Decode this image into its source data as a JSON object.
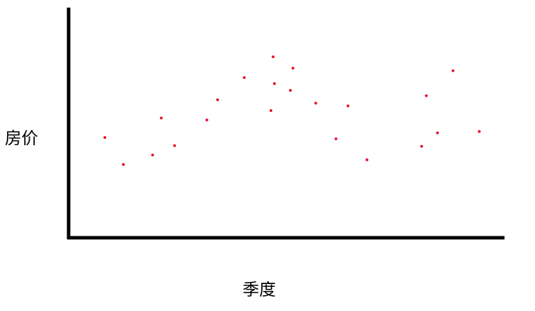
{
  "chart_data": {
    "type": "scatter",
    "title": "",
    "xlabel": "季度",
    "ylabel": "房价",
    "xlim": [
      0,
      100
    ],
    "ylim": [
      0,
      100
    ],
    "grid": false,
    "legend": "none",
    "series": [
      {
        "color": "#e8102f",
        "points": [
          {
            "x": 8.1,
            "y": 43.7
          },
          {
            "x": 12.4,
            "y": 31.7
          },
          {
            "x": 19.2,
            "y": 35.9
          },
          {
            "x": 21.2,
            "y": 52.4
          },
          {
            "x": 24.3,
            "y": 40.1
          },
          {
            "x": 31.8,
            "y": 51.5
          },
          {
            "x": 34.3,
            "y": 60.5
          },
          {
            "x": 40.5,
            "y": 70.4
          },
          {
            "x": 46.7,
            "y": 55.7
          },
          {
            "x": 47.2,
            "y": 79.6
          },
          {
            "x": 47.5,
            "y": 67.7
          },
          {
            "x": 51.2,
            "y": 64.7
          },
          {
            "x": 51.8,
            "y": 74.6
          },
          {
            "x": 57.1,
            "y": 59.0
          },
          {
            "x": 61.8,
            "y": 43.1
          },
          {
            "x": 64.6,
            "y": 57.8
          },
          {
            "x": 69.0,
            "y": 33.8
          },
          {
            "x": 81.7,
            "y": 39.8
          },
          {
            "x": 82.8,
            "y": 62.3
          },
          {
            "x": 85.4,
            "y": 45.8
          },
          {
            "x": 89.0,
            "y": 73.4
          },
          {
            "x": 95.1,
            "y": 46.4
          }
        ]
      }
    ]
  }
}
